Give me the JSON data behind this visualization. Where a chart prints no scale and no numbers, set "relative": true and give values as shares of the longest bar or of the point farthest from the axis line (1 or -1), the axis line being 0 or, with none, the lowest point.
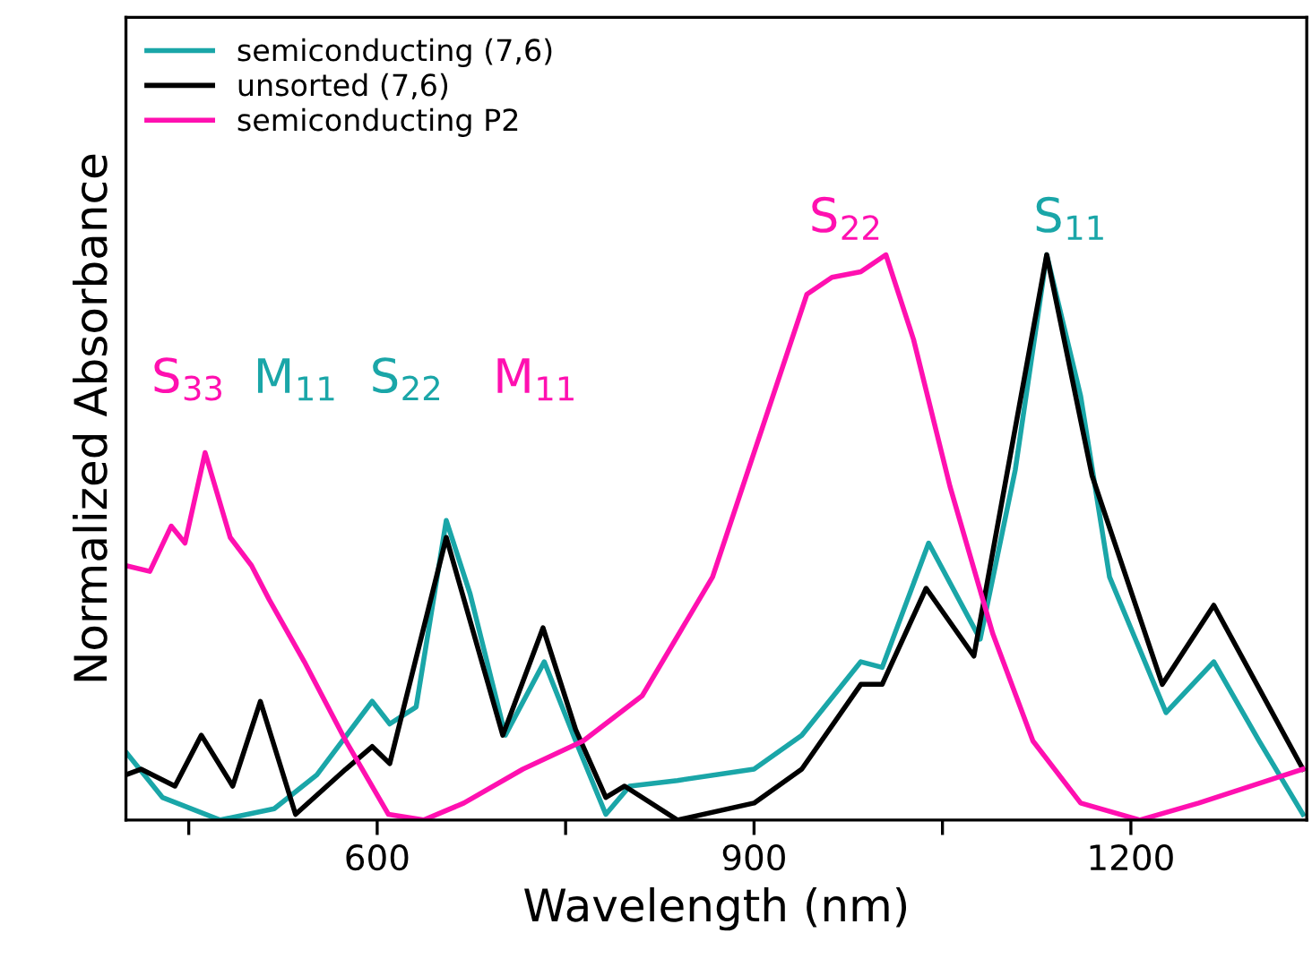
{
  "chart_data": {
    "type": "line",
    "relative": true,
    "xlabel": "Wavelength (nm)",
    "ylabel": "Normalized Absorbance",
    "xlim": [
      400,
      1340
    ],
    "xticks": [
      {
        "value": 450,
        "label": null
      },
      600,
      {
        "value": 750,
        "label": null
      },
      900,
      {
        "value": 1050,
        "label": null
      },
      1200
    ],
    "legend": "top left",
    "grid": false,
    "line_style": "solid",
    "marker": "none",
    "series": [
      {
        "name": "semiconducting (7,6)",
        "color": "#1aa6a8",
        "x": [
          400,
          429,
          475,
          518,
          552,
          596,
          610,
          631,
          655,
          674,
          702,
          733,
          758,
          782,
          801,
          839,
          900,
          938,
          985,
          1002,
          1039,
          1080,
          1108,
          1133,
          1160,
          1183,
          1228,
          1266,
          1302,
          1337
        ],
        "values": [
          0.12,
          0.04,
          0,
          0.02,
          0.08,
          0.21,
          0.17,
          0.2,
          0.53,
          0.4,
          0.15,
          0.28,
          0.14,
          0.01,
          0.06,
          0.07,
          0.09,
          0.15,
          0.28,
          0.27,
          0.49,
          0.32,
          0.62,
          1.0,
          0.75,
          0.43,
          0.19,
          0.28,
          0.14,
          0.01
        ]
      },
      {
        "name": "unsorted (7,6)",
        "color": "#000000",
        "x": [
          400,
          412,
          439,
          460,
          485,
          507,
          535,
          575,
          596,
          610,
          655,
          700,
          732,
          758,
          782,
          797,
          839,
          900,
          938,
          985,
          1002,
          1037,
          1075,
          1133,
          1169,
          1225,
          1266,
          1337
        ],
        "values": [
          0.08,
          0.09,
          0.06,
          0.15,
          0.06,
          0.21,
          0.01,
          0.09,
          0.13,
          0.1,
          0.5,
          0.15,
          0.34,
          0.16,
          0.04,
          0.06,
          0,
          0.03,
          0.09,
          0.24,
          0.24,
          0.41,
          0.29,
          1.0,
          0.61,
          0.24,
          0.38,
          0.09
        ]
      },
      {
        "name": "semiconducting P2",
        "color": "#ff10b0",
        "x": [
          400,
          419,
          436,
          447,
          463,
          483,
          500,
          514,
          542,
          575,
          609,
          637,
          669,
          716,
          764,
          811,
          867,
          906,
          942,
          962,
          985,
          1005,
          1027,
          1056,
          1090,
          1122,
          1160,
          1207,
          1254,
          1337
        ],
        "values": [
          0.45,
          0.44,
          0.52,
          0.49,
          0.65,
          0.5,
          0.45,
          0.39,
          0.28,
          0.14,
          0.01,
          0,
          0.03,
          0.09,
          0.14,
          0.22,
          0.43,
          0.69,
          0.93,
          0.96,
          0.97,
          1.0,
          0.85,
          0.59,
          0.33,
          0.14,
          0.03,
          0,
          0.03,
          0.09
        ]
      }
    ],
    "annotations": [
      "S$_{33}$",
      "M$_{11}$",
      "S$_{22}$",
      "M$_{11}$",
      "S$_{22}$",
      "S$_{11}$"
    ]
  }
}
